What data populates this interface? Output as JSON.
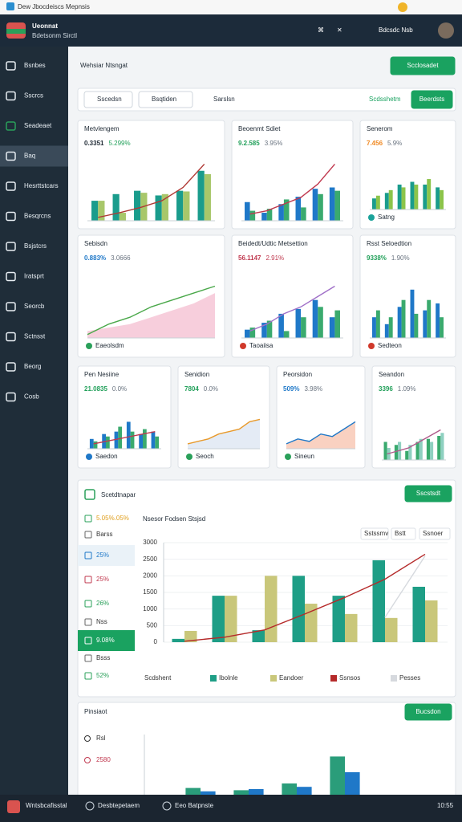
{
  "window_title": "Dew Jbocdeiscs Mepnsis",
  "header": {
    "brand": "Ueonnat",
    "brand_sub": "Bdetsonm Sirctl",
    "user": "Bdcsdc Nsb"
  },
  "sidebar": {
    "items": [
      "Bsnbes",
      "Sscrcs",
      "Seadeaet",
      "Baq",
      "Hesrttstcars",
      "Besqrcns",
      "Bsjstcrs",
      "Iratsprt",
      "Seorcb",
      "Sctnsst",
      "Beorg",
      "Cosb"
    ],
    "active": 3
  },
  "page": {
    "title": "Wehsiar Ntsngat",
    "button": "Scclosadet"
  },
  "filters": {
    "items": [
      "Sscedsn",
      "Bsqtiden",
      "Sarslsn"
    ],
    "link": "Scdsshetm",
    "button": "Beerdsts"
  },
  "cards": [
    {
      "title": "Metvlengem",
      "value": "0.3351",
      "change": "5.299%",
      "value_color": "#1f2a35",
      "change_color": "#22a05a",
      "chart": {
        "type": "bar",
        "ylim": [
          0,
          100
        ],
        "series": [
          {
            "color": "#1a9c8c",
            "values": [
              30,
              40,
              45,
              38,
              45,
              75
            ]
          },
          {
            "color": "#a8c76a",
            "values": [
              30,
              12,
              42,
              40,
              44,
              70
            ]
          }
        ],
        "line": {
          "color": "#b03a36",
          "values": [
            5,
            12,
            20,
            30,
            50,
            85
          ]
        }
      }
    },
    {
      "title": "Beoenmt Sdiet",
      "value": "9.2.585",
      "change": "3.95%",
      "value_color": "#22a05a",
      "change_color": "#6a7480",
      "chart": {
        "type": "bar",
        "ylim": [
          0,
          100
        ],
        "series": [
          {
            "color": "#1f78c8",
            "values": [
              28,
              12,
              25,
              36,
              48,
              50
            ]
          },
          {
            "color": "#3aaa6e",
            "values": [
              15,
              18,
              32,
              20,
              40,
              45
            ]
          }
        ],
        "line": {
          "color": "#c0394f",
          "values": [
            10,
            15,
            25,
            35,
            55,
            85
          ]
        }
      }
    },
    {
      "title": "Senerom",
      "value": "7.456",
      "change": "5.9%",
      "value_color": "#f08a24",
      "change_color": "#6a7480",
      "chart": {
        "type": "bar",
        "ylim": [
          0,
          100
        ],
        "series": [
          {
            "color": "#1a9c8c",
            "values": [
              20,
              30,
              45,
              50,
              45,
              40
            ]
          },
          {
            "color": "#8cc44a",
            "values": [
              25,
              35,
              40,
              45,
              55,
              35
            ]
          }
        ]
      },
      "legend": [
        {
          "name": "Satng",
          "color": "#1aa29a"
        }
      ]
    },
    {
      "title": "Sebisdn",
      "value": "0.883%",
      "change": "3.0666",
      "value_color": "#1f78c8",
      "change_color": "#6a7480",
      "chart": {
        "type": "area",
        "ylim": [
          0,
          100
        ],
        "area": {
          "color": "#f6c6d6",
          "values": [
            10,
            15,
            20,
            30,
            40,
            50,
            65
          ]
        },
        "line": {
          "color": "#4aa84a",
          "values": [
            5,
            20,
            30,
            45,
            55,
            65,
            75
          ]
        }
      },
      "legend": [
        {
          "name": "Eaeolsdm",
          "color": "#2aa05a"
        }
      ]
    },
    {
      "title": "Beidedt/Udtic Metsettion",
      "value": "56.1147",
      "change": "2.91%",
      "value_color": "#c0394f",
      "change_color": "#c0394f",
      "chart": {
        "type": "bar",
        "ylim": [
          0,
          100
        ],
        "series": [
          {
            "color": "#1f78c8",
            "values": [
              12,
              22,
              35,
              42,
              55,
              30
            ]
          },
          {
            "color": "#3aaa6e",
            "values": [
              15,
              25,
              10,
              30,
              45,
              40
            ]
          }
        ],
        "line": {
          "color": "#a070c8",
          "values": [
            10,
            20,
            35,
            45,
            60,
            75
          ]
        }
      },
      "legend": [
        {
          "name": "Taoaiisa",
          "color": "#d0392b"
        }
      ]
    },
    {
      "title": "Rsst Seloedtion",
      "value": "9338%",
      "change": "1.90%",
      "value_color": "#22a05a",
      "change_color": "#6a7480",
      "chart": {
        "type": "bar",
        "ylim": [
          0,
          100
        ],
        "series": [
          {
            "color": "#1f78c8",
            "values": [
              30,
              20,
              45,
              70,
              40,
              50
            ]
          },
          {
            "color": "#3aaa6e",
            "values": [
              40,
              30,
              55,
              35,
              55,
              30
            ]
          }
        ]
      },
      "legend": [
        {
          "name": "Sedteon",
          "color": "#d0392b"
        }
      ]
    },
    {
      "title": "Pen Nesiine",
      "value": "21.0835",
      "change": "0.0%",
      "value_color": "#22a05a",
      "change_color": "#6a7480",
      "chart": {
        "type": "bar",
        "ylim": [
          0,
          100
        ],
        "series": [
          {
            "color": "#1f78c8",
            "values": [
              20,
              30,
              35,
              55,
              30,
              35
            ]
          },
          {
            "color": "#3aaa6e",
            "values": [
              15,
              25,
              45,
              35,
              40,
              25
            ]
          }
        ],
        "line": {
          "color": "#c0394f",
          "values": [
            10,
            15,
            20,
            25,
            30,
            35
          ]
        }
      },
      "legend": [
        {
          "name": "Saedon",
          "color": "#1f78c8"
        }
      ]
    },
    {
      "title": "Senidion",
      "value": "7804",
      "change": "0.0%",
      "value_color": "#22a05a",
      "change_color": "#6a7480",
      "chart": {
        "type": "area",
        "ylim": [
          0,
          100
        ],
        "area": {
          "color": "#dfe7f3",
          "values": [
            10,
            15,
            20,
            30,
            35,
            40,
            55,
            60
          ]
        },
        "line": {
          "color": "#e89a2c",
          "values": [
            10,
            15,
            20,
            30,
            35,
            40,
            55,
            60
          ]
        }
      },
      "legend": [
        {
          "name": "Seoch",
          "color": "#2aa05a"
        }
      ]
    },
    {
      "title": "Peorsidon",
      "value": "509%",
      "change": "3.98%",
      "value_color": "#1f78c8",
      "change_color": "#6a7480",
      "chart": {
        "type": "area",
        "ylim": [
          0,
          100
        ],
        "area": {
          "color": "#f8c9b6",
          "values": [
            10,
            20,
            15,
            30,
            25,
            40,
            55
          ]
        },
        "line": {
          "color": "#1f78c8",
          "values": [
            10,
            20,
            15,
            30,
            25,
            40,
            55
          ]
        }
      },
      "legend": [
        {
          "name": "Sineun",
          "color": "#2aa05a"
        }
      ]
    },
    {
      "title": "Seandon",
      "value": "3396",
      "change": "1.09%",
      "value_color": "#22a05a",
      "change_color": "#6a7480",
      "chart": {
        "type": "bar",
        "ylim": [
          0,
          100
        ],
        "series": [
          {
            "color": "#3aaa6e",
            "values": [
              30,
              25,
              15,
              30,
              35,
              40
            ]
          },
          {
            "color": "#8fd0c0",
            "values": [
              20,
              30,
              25,
              35,
              30,
              45
            ]
          }
        ],
        "line": {
          "color": "#b05a8a",
          "values": [
            10,
            15,
            20,
            30,
            40,
            50
          ]
        }
      }
    }
  ],
  "summary": {
    "title": "Scetdtnapar",
    "button": "Sscstsdt",
    "list": {
      "items": [
        "5.05%.05%",
        "Barss",
        "25%",
        "25%",
        "26%",
        "Nss",
        "9.08%",
        "Bsss",
        "52%"
      ],
      "active": 6
    },
    "chart": {
      "type": "bar",
      "title": "Nsesor Fodsen Stsjsd",
      "controls": [
        "Sstssmv",
        "Bstt",
        "Ssnoer"
      ],
      "ylim": [
        0,
        3000
      ],
      "yticks": [
        0,
        500,
        1000,
        1500,
        2000,
        2500,
        3000
      ],
      "series": [
        {
          "name": "Ibolnle",
          "color": "#1e9e86",
          "values": [
            100,
            1400,
            360,
            2000,
            1400,
            2470,
            1670
          ]
        },
        {
          "name": "Eandoer",
          "color": "#c9c77a",
          "values": [
            340,
            1400,
            2000,
            1160,
            850,
            730,
            1260
          ]
        }
      ],
      "lines": [
        {
          "name": "Ssnsos",
          "color": "#b52a2a",
          "values": [
            30,
            150,
            370,
            850,
            1350,
            1900,
            2650
          ]
        },
        {
          "name": "Pesses",
          "color": "#d6d9de",
          "values": [
            null,
            null,
            null,
            null,
            null,
            750,
            2600
          ]
        }
      ],
      "legend_title": "Scdshent"
    }
  },
  "bottom": {
    "title": "Pinsiaot",
    "button": "Bucsdon",
    "rows": [
      "Rsl",
      "2580"
    ],
    "chart": {
      "type": "bar",
      "ylim": [
        0,
        100
      ],
      "series": [
        {
          "color": "#2a9d7a",
          "values": [
            12,
            8,
            20,
            68
          ]
        },
        {
          "color": "#1f78c8",
          "values": [
            6,
            10,
            14,
            40
          ]
        }
      ]
    }
  },
  "taskbar": {
    "items": [
      "Wntsbcafisstal",
      "Desbtepetaem",
      "Eeo Batpnste"
    ],
    "time": "10:55"
  }
}
